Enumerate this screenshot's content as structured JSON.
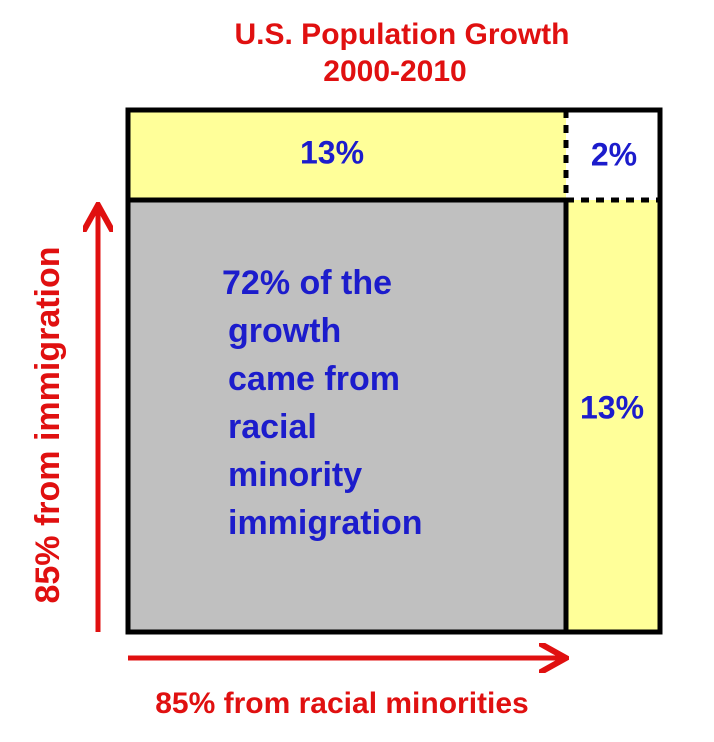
{
  "title": {
    "line1": "U.S. Population Growth",
    "line2": "2000-2010"
  },
  "cells": {
    "top_left": "13%",
    "top_right": "2%",
    "right": "13%",
    "main": [
      "72% of the",
      "growth",
      "came from",
      "racial",
      "minority",
      "immigration"
    ]
  },
  "axes": {
    "vertical": "85% from immigration",
    "horizontal": "85% from racial minorities"
  }
}
